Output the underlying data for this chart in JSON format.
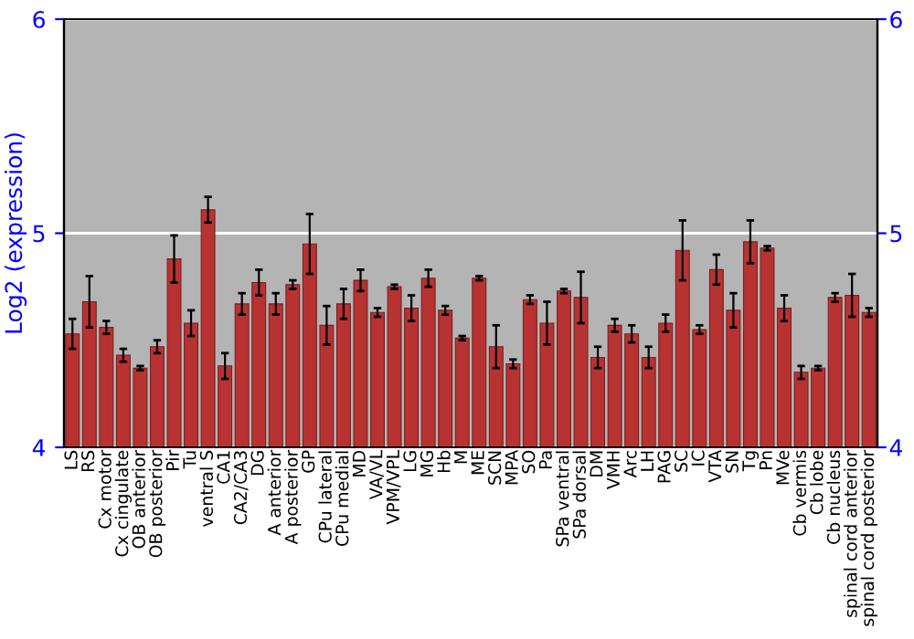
{
  "chart_data": {
    "type": "bar",
    "ylabel": "Log2 (expression)",
    "categories": [
      "LS",
      "RS",
      "Cx motor",
      "Cx cingulate",
      "OB anterior",
      "OB posterior",
      "Pir",
      "Tu",
      "ventral S",
      "CA1",
      "CA2/CA3",
      "DG",
      "A anterior",
      "A posterior",
      "GP",
      "CPu lateral",
      "CPu medial",
      "MD",
      "VA/VL",
      "VPM/VPL",
      "LG",
      "MG",
      "Hb",
      "M",
      "ME",
      "SCN",
      "MPA",
      "SO",
      "Pa",
      "SPa ventral",
      "SPa dorsal",
      "DM",
      "VMH",
      "Arc",
      "LH",
      "PAG",
      "SC",
      "IC",
      "VTA",
      "SN",
      "Tg",
      "Pn",
      "MVe",
      "Cb vermis",
      "Cb lobe",
      "Cb nucleus",
      "spinal cord anterior",
      "spinal cord posterior"
    ],
    "values": [
      4.53,
      4.68,
      4.56,
      4.43,
      4.37,
      4.47,
      4.88,
      4.58,
      5.11,
      4.38,
      4.67,
      4.77,
      4.67,
      4.76,
      4.95,
      4.57,
      4.67,
      4.78,
      4.63,
      4.75,
      4.65,
      4.79,
      4.64,
      4.51,
      4.79,
      4.47,
      4.39,
      4.69,
      4.58,
      4.73,
      4.7,
      4.42,
      4.57,
      4.53,
      4.42,
      4.58,
      4.92,
      4.55,
      4.83,
      4.64,
      4.96,
      4.93,
      4.65,
      4.35,
      4.37,
      4.7,
      4.71,
      4.63
    ],
    "errors": [
      0.07,
      0.12,
      0.03,
      0.03,
      0.01,
      0.03,
      0.11,
      0.06,
      0.06,
      0.06,
      0.05,
      0.06,
      0.05,
      0.02,
      0.14,
      0.09,
      0.07,
      0.05,
      0.02,
      0.01,
      0.06,
      0.04,
      0.02,
      0.01,
      0.01,
      0.1,
      0.02,
      0.02,
      0.1,
      0.01,
      0.12,
      0.05,
      0.03,
      0.04,
      0.05,
      0.04,
      0.14,
      0.02,
      0.07,
      0.08,
      0.1,
      0.01,
      0.06,
      0.03,
      0.01,
      0.02,
      0.1,
      0.02
    ],
    "color": "#b83232",
    "ylim": [
      4,
      6
    ],
    "yticks": [
      4,
      5,
      6
    ],
    "y2lim": [
      4,
      6
    ],
    "y2ticks": [
      4,
      5,
      6
    ],
    "grid": "y",
    "legend": false
  }
}
